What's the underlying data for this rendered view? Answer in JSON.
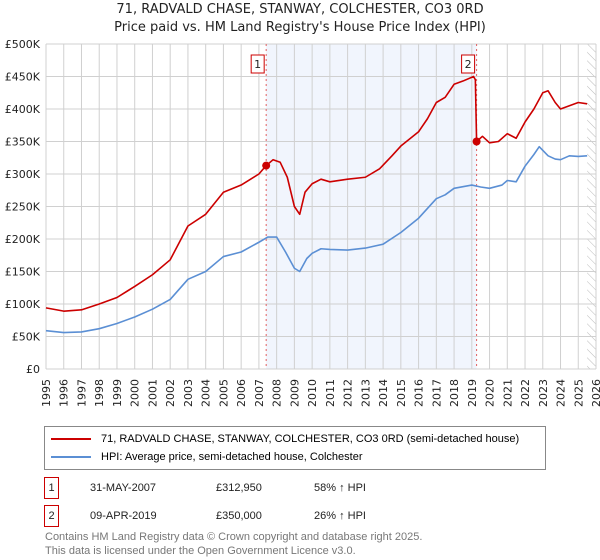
{
  "title": "71, RADVALD CHASE, STANWAY, COLCHESTER, CO3 0RD",
  "subtitle": "Price paid vs. HM Land Registry's House Price Index (HPI)",
  "chart_data": {
    "type": "line",
    "xlim": [
      1995,
      2026
    ],
    "ylim": [
      0,
      500000
    ],
    "yticks": [
      {
        "v": 0,
        "label": "£0"
      },
      {
        "v": 50000,
        "label": "£50K"
      },
      {
        "v": 100000,
        "label": "£100K"
      },
      {
        "v": 150000,
        "label": "£150K"
      },
      {
        "v": 200000,
        "label": "£200K"
      },
      {
        "v": 250000,
        "label": "£250K"
      },
      {
        "v": 300000,
        "label": "£300K"
      },
      {
        "v": 350000,
        "label": "£350K"
      },
      {
        "v": 400000,
        "label": "£400K"
      },
      {
        "v": 450000,
        "label": "£450K"
      },
      {
        "v": 500000,
        "label": "£500K"
      }
    ],
    "xticks": [
      "1995",
      "1996",
      "1997",
      "1998",
      "1999",
      "2000",
      "2001",
      "2002",
      "2003",
      "2004",
      "2005",
      "2006",
      "2007",
      "2008",
      "2009",
      "2010",
      "2011",
      "2012",
      "2013",
      "2014",
      "2015",
      "2016",
      "2017",
      "2018",
      "2019",
      "2020",
      "2021",
      "2022",
      "2023",
      "2024",
      "2025",
      "2026"
    ],
    "shaded_range": [
      2007.41,
      2019.27
    ],
    "hatched_from": 2025.5,
    "series": [
      {
        "name": "71, RADVALD CHASE, STANWAY, COLCHESTER, CO3 0RD (semi-detached house)",
        "color": "#cc0000",
        "x": [
          1995,
          1996,
          1997,
          1998,
          1999,
          2000,
          2001,
          2002,
          2003,
          2004,
          2005,
          2006,
          2007,
          2007.41,
          2007.8,
          2008.2,
          2008.6,
          2009,
          2009.3,
          2009.6,
          2010,
          2010.5,
          2011,
          2012,
          2013,
          2013.8,
          2014.5,
          2015,
          2016,
          2016.5,
          2017,
          2017.5,
          2018,
          2018.5,
          2019.1,
          2019.2,
          2019.27,
          2019.6,
          2020,
          2020.5,
          2021,
          2021.5,
          2022,
          2022.5,
          2023,
          2023.3,
          2023.7,
          2024,
          2024.5,
          2025,
          2025.5
        ],
        "y": [
          94000,
          89000,
          91000,
          100000,
          110000,
          127000,
          145000,
          168000,
          220000,
          238000,
          272000,
          283000,
          300000,
          312950,
          322000,
          318000,
          295000,
          250000,
          238000,
          272000,
          285000,
          292000,
          288000,
          292000,
          295000,
          308000,
          328000,
          343000,
          365000,
          385000,
          410000,
          418000,
          438000,
          443000,
          450000,
          445000,
          350000,
          358000,
          348000,
          350000,
          362000,
          355000,
          380000,
          400000,
          425000,
          428000,
          410000,
          400000,
          405000,
          410000,
          408000
        ]
      },
      {
        "name": "HPI: Average price, semi-detached house, Colchester",
        "color": "#5b8fd4",
        "x": [
          1995,
          1996,
          1997,
          1998,
          1999,
          2000,
          2001,
          2002,
          2003,
          2004,
          2005,
          2006,
          2007,
          2007.5,
          2008,
          2008.5,
          2009,
          2009.3,
          2009.7,
          2010,
          2010.5,
          2011,
          2012,
          2013,
          2014,
          2015,
          2016,
          2017,
          2017.5,
          2018,
          2019,
          2019.5,
          2020,
          2020.7,
          2021,
          2021.5,
          2022,
          2022.5,
          2022.8,
          2023.3,
          2023.7,
          2024,
          2024.5,
          2025,
          2025.5
        ],
        "y": [
          59000,
          56000,
          57000,
          62000,
          70000,
          80000,
          92000,
          107000,
          138000,
          150000,
          173000,
          180000,
          195000,
          203000,
          203000,
          180000,
          155000,
          150000,
          170000,
          178000,
          185000,
          184000,
          183000,
          186000,
          192000,
          210000,
          232000,
          262000,
          268000,
          278000,
          283000,
          280000,
          278000,
          283000,
          290000,
          288000,
          312000,
          330000,
          342000,
          328000,
          323000,
          322000,
          328000,
          327000,
          328000
        ]
      }
    ],
    "markers": [
      {
        "label": "1",
        "x": 2007.41,
        "y": 312950
      },
      {
        "label": "2",
        "x": 2019.27,
        "y": 350000
      }
    ]
  },
  "legend": {
    "red": "71, RADVALD CHASE, STANWAY, COLCHESTER, CO3 0RD (semi-detached house)",
    "blue": "HPI: Average price, semi-detached house, Colchester"
  },
  "sales": [
    {
      "num": "1",
      "date": "31-MAY-2007",
      "price": "£312,950",
      "hpi": "58% ↑ HPI"
    },
    {
      "num": "2",
      "date": "09-APR-2019",
      "price": "£350,000",
      "hpi": "26% ↑ HPI"
    }
  ],
  "footer": {
    "line1": "Contains HM Land Registry data © Crown copyright and database right 2025.",
    "line2": "This data is licensed under the Open Government Licence v3.0."
  }
}
